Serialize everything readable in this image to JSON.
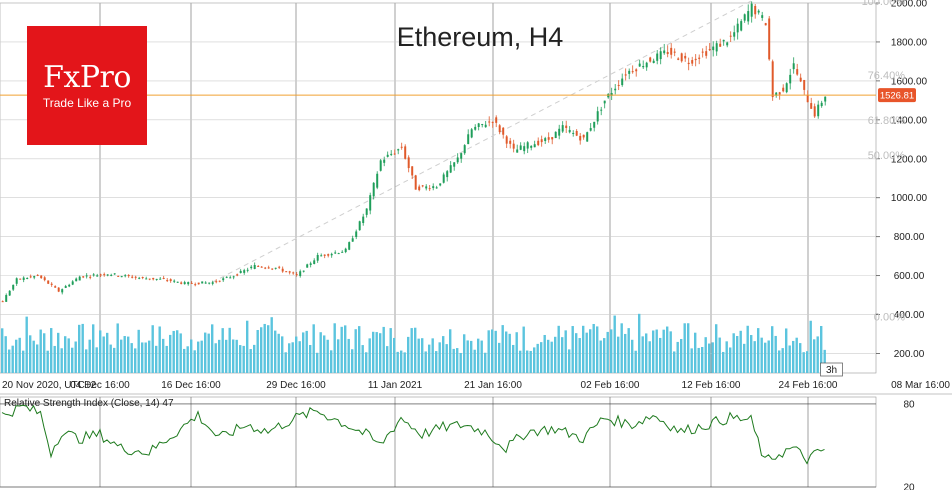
{
  "chart_data": [
    {
      "type": "candlestick",
      "title": "Ethereum, H4",
      "timezone_label": "UTC+2",
      "x_ticks": [
        "20 Nov 2020, UTC+2",
        "04 Dec 16:00",
        "16 Dec 16:00",
        "29 Dec 16:00",
        "11 Jan 2021",
        "21 Jan 16:00",
        "02 Feb 16:00",
        "12 Feb 16:00",
        "24 Feb 16:00",
        "08 Mar 16:00"
      ],
      "y_ticks": [
        "2000.00",
        "1800.00",
        "1600.00",
        "1400.00",
        "1200.00",
        "1000.00",
        "800.00",
        "600.00",
        "400.00",
        "200.00"
      ],
      "ylim": [
        100,
        2000
      ],
      "price_path": [
        [
          0,
          470
        ],
        [
          4,
          580
        ],
        [
          10,
          600
        ],
        [
          16,
          520
        ],
        [
          22,
          595
        ],
        [
          30,
          610
        ],
        [
          38,
          590
        ],
        [
          46,
          580
        ],
        [
          52,
          560
        ],
        [
          60,
          565
        ],
        [
          66,
          600
        ],
        [
          72,
          650
        ],
        [
          78,
          640
        ],
        [
          84,
          600
        ],
        [
          90,
          700
        ],
        [
          98,
          730
        ],
        [
          104,
          940
        ],
        [
          108,
          1190
        ],
        [
          114,
          1260
        ],
        [
          118,
          1050
        ],
        [
          124,
          1060
        ],
        [
          130,
          1200
        ],
        [
          134,
          1350
        ],
        [
          140,
          1400
        ],
        [
          146,
          1240
        ],
        [
          150,
          1270
        ],
        [
          156,
          1300
        ],
        [
          160,
          1360
        ],
        [
          166,
          1300
        ],
        [
          172,
          1500
        ],
        [
          178,
          1640
        ],
        [
          184,
          1700
        ],
        [
          190,
          1750
        ],
        [
          196,
          1700
        ],
        [
          202,
          1760
        ],
        [
          208,
          1820
        ],
        [
          214,
          1980
        ],
        [
          218,
          1900
        ],
        [
          220,
          1520
        ],
        [
          223,
          1560
        ],
        [
          226,
          1680
        ],
        [
          229,
          1540
        ],
        [
          232,
          1430
        ],
        [
          235,
          1526.81
        ]
      ],
      "current_price": "1526.81",
      "fib_levels": [
        {
          "label": "100.00%",
          "price": 2000
        },
        {
          "label": "76.40%",
          "price": 1620
        },
        {
          "label": "61.80%",
          "price": 1390
        },
        {
          "label": "50.00%",
          "price": 1210
        },
        {
          "label": "0.00%",
          "price": 380
        }
      ],
      "annotation": "3h",
      "trend_line": {
        "from": [
          60,
          565
        ],
        "to": [
          214,
          2010
        ]
      },
      "colors": {
        "up": "#1f9e5a",
        "down": "#e05a2b",
        "volume": "#5bc4de",
        "price_line": "#f0a030",
        "price_tag": "#e8552a",
        "grid": "#cccccc",
        "fib": "#c8c8c8"
      }
    },
    {
      "type": "line",
      "title": "Relative Strength Index (Close, 14) 47",
      "y_ticks": [
        "80",
        "20"
      ],
      "ylim": [
        20,
        85
      ],
      "levels": [
        80,
        20
      ],
      "rsi_path": [
        [
          0,
          72
        ],
        [
          6,
          78
        ],
        [
          11,
          73
        ],
        [
          14,
          45
        ],
        [
          17,
          60
        ],
        [
          22,
          55
        ],
        [
          28,
          58
        ],
        [
          34,
          48
        ],
        [
          42,
          45
        ],
        [
          50,
          60
        ],
        [
          56,
          72
        ],
        [
          62,
          55
        ],
        [
          70,
          65
        ],
        [
          76,
          60
        ],
        [
          84,
          70
        ],
        [
          90,
          75
        ],
        [
          96,
          68
        ],
        [
          104,
          58
        ],
        [
          108,
          50
        ],
        [
          114,
          70
        ],
        [
          120,
          58
        ],
        [
          126,
          63
        ],
        [
          132,
          65
        ],
        [
          138,
          60
        ],
        [
          144,
          48
        ],
        [
          150,
          60
        ],
        [
          158,
          62
        ],
        [
          166,
          55
        ],
        [
          172,
          70
        ],
        [
          180,
          65
        ],
        [
          186,
          72
        ],
        [
          194,
          60
        ],
        [
          200,
          64
        ],
        [
          208,
          70
        ],
        [
          214,
          68
        ],
        [
          218,
          38
        ],
        [
          222,
          44
        ],
        [
          226,
          48
        ],
        [
          230,
          40
        ],
        [
          235,
          47
        ]
      ],
      "color": "#1e7a1e"
    }
  ],
  "logo": {
    "name": "FxPro",
    "tagline": "Trade Like a Pro",
    "color": "#e3151a"
  }
}
